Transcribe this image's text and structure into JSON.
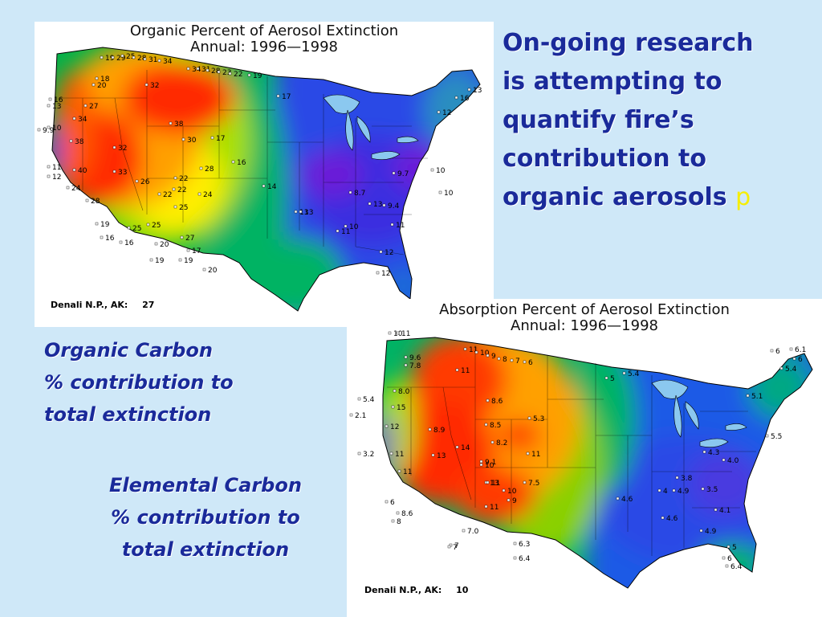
{
  "slide": {
    "heading_lines": [
      "On-going research",
      "is attempting to",
      "quantify fire’s",
      "contribution to",
      "organic aerosols"
    ],
    "heading_stray_char": "p",
    "caption_oc": [
      "Organic Carbon",
      "% contribution to",
      "total extinction"
    ],
    "caption_ec": [
      "Elemental Carbon",
      "% contribution to",
      "total extinction"
    ],
    "colors": {
      "background": "#cfe8f8",
      "text": "#1a2a9a"
    }
  },
  "maps": [
    {
      "title": "Organic Percent of Aerosol Extinction",
      "subtitle": "Annual: 1996—1998",
      "footer_label": "Denali N.P., AK:",
      "footer_value": "27",
      "labels": [
        "19",
        "29",
        "25",
        "28",
        "31",
        "34",
        "34",
        "31",
        "28",
        "23",
        "22",
        "19",
        "18",
        "20",
        "16",
        "13",
        "10",
        "9.9",
        "27",
        "34",
        "38",
        "40",
        "11",
        "12",
        "24",
        "28",
        "19",
        "16",
        "16",
        "19",
        "19",
        "17",
        "20",
        "20",
        "25",
        "25",
        "27",
        "24",
        "22",
        "22",
        "22",
        "25",
        "26",
        "28",
        "33",
        "32",
        "30",
        "38",
        "32",
        "17",
        "17",
        "16",
        "14",
        "13",
        "12",
        "10",
        "10",
        "9.7",
        "8.7",
        "13",
        "9.4",
        "11",
        "11",
        "12",
        "12",
        "16",
        "13",
        "13",
        "10"
      ]
    },
    {
      "title": "Absorption Percent of Aerosol Extinction",
      "subtitle": "Annual: 1996—1998",
      "footer_label": "Denali N.P., AK:",
      "footer_value": "10",
      "labels": [
        "10",
        "11",
        "11",
        "10",
        "9",
        "8",
        "7",
        "6",
        "9.6",
        "7.8",
        "11",
        "8.0",
        "15",
        "12",
        "11",
        "11",
        "6",
        "8",
        "8.6",
        "13",
        "14",
        "8.9",
        "8.6",
        "8.5",
        "8.2",
        "5.3",
        "11",
        "9.1",
        "10",
        "13",
        "11",
        "10",
        "9",
        "11",
        "7.5",
        "7.0",
        "7",
        "6.3",
        "6.4",
        "5.4",
        "5",
        "6",
        "6",
        "5.4",
        "6.1",
        "5.1",
        "5.5",
        "4.3",
        "4.0",
        "3.8",
        "4.9",
        "3.5",
        "4.6",
        "4",
        "4.6",
        "4.1",
        "4.9",
        "5",
        "6",
        "6.4",
        "2.1",
        "3.2",
        "5.4",
        "7"
      ]
    }
  ]
}
